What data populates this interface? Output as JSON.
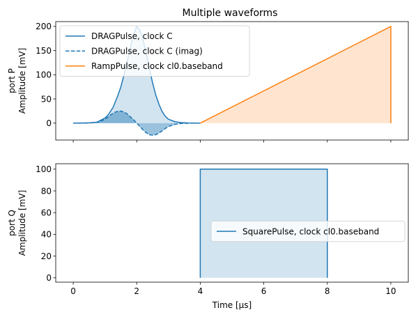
{
  "chart_data": {
    "title": "Multiple waveforms",
    "subplots": [
      {
        "type": "line",
        "ylabel_line1": "port P",
        "ylabel_line2": "Amplitude [mV]",
        "xlim": [
          -0.55,
          10.55
        ],
        "ylim": [
          -35,
          210
        ],
        "x_ticks": [
          0,
          2,
          4,
          6,
          8,
          10
        ],
        "y_ticks": [
          0,
          50,
          100,
          150,
          200
        ],
        "y_tick_labels": [
          "0",
          "50",
          "100",
          "150",
          "200"
        ],
        "show_x_tick_labels": false,
        "legend_position": "upper-left",
        "series": [
          {
            "name": "DRAGPulse, clock C",
            "color": "#1f77b4",
            "dash": "solid",
            "fill_opacity": 0.2,
            "points": [
              [
                0,
                0
              ],
              [
                0.25,
                0.1
              ],
              [
                0.5,
                0.5
              ],
              [
                0.75,
                2
              ],
              [
                1.0,
                10.5
              ],
              [
                1.1,
                17
              ],
              [
                1.25,
                32
              ],
              [
                1.4,
                56
              ],
              [
                1.5,
                75
              ],
              [
                1.6,
                100
              ],
              [
                1.7,
                128
              ],
              [
                1.8,
                157
              ],
              [
                1.9,
                183
              ],
              [
                2.0,
                200
              ],
              [
                2.1,
                192
              ],
              [
                2.2,
                172
              ],
              [
                2.3,
                145
              ],
              [
                2.4,
                113
              ],
              [
                2.5,
                83
              ],
              [
                2.6,
                58
              ],
              [
                2.7,
                39
              ],
              [
                2.8,
                24
              ],
              [
                2.9,
                14
              ],
              [
                3.0,
                8
              ],
              [
                3.2,
                3
              ],
              [
                3.4,
                1
              ],
              [
                3.6,
                0.3
              ],
              [
                4.0,
                0
              ]
            ]
          },
          {
            "name": "DRAGPulse, clock C (imag)",
            "color": "#1f77b4",
            "dash": "dashed",
            "fill_opacity": 0.45,
            "points": [
              [
                0,
                0
              ],
              [
                0.5,
                0.3
              ],
              [
                0.8,
                2
              ],
              [
                1.0,
                8
              ],
              [
                1.1,
                13
              ],
              [
                1.2,
                18
              ],
              [
                1.3,
                22
              ],
              [
                1.4,
                24.5
              ],
              [
                1.5,
                25
              ],
              [
                1.6,
                23
              ],
              [
                1.7,
                19
              ],
              [
                1.8,
                13
              ],
              [
                1.9,
                7
              ],
              [
                2.0,
                0
              ],
              [
                2.1,
                -7
              ],
              [
                2.2,
                -14
              ],
              [
                2.3,
                -20
              ],
              [
                2.4,
                -24
              ],
              [
                2.5,
                -25
              ],
              [
                2.6,
                -24
              ],
              [
                2.7,
                -20.5
              ],
              [
                2.8,
                -16
              ],
              [
                2.9,
                -11
              ],
              [
                3.0,
                -7
              ],
              [
                3.2,
                -2.5
              ],
              [
                3.4,
                -0.8
              ],
              [
                3.7,
                -0.1
              ],
              [
                4.0,
                0
              ]
            ]
          },
          {
            "name": "RampPulse, clock cl0.baseband",
            "color": "#ff7f0e",
            "dash": "solid",
            "fill_opacity": 0.2,
            "points": [
              [
                4,
                0
              ],
              [
                10,
                200
              ],
              [
                10,
                0
              ]
            ]
          }
        ]
      },
      {
        "type": "line",
        "xlabel": "Time [µs]",
        "ylabel_line1": "port Q",
        "ylabel_line2": "Amplitude [mV]",
        "xlim": [
          -0.55,
          10.55
        ],
        "ylim": [
          -4,
          105
        ],
        "x_ticks": [
          0,
          2,
          4,
          6,
          8,
          10
        ],
        "x_tick_labels": [
          "0",
          "2",
          "4",
          "6",
          "8",
          "10"
        ],
        "y_ticks": [
          0,
          20,
          40,
          60,
          80,
          100
        ],
        "y_tick_labels": [
          "0",
          "20",
          "40",
          "60",
          "80",
          "100"
        ],
        "show_x_tick_labels": true,
        "legend_position": "center-right",
        "series": [
          {
            "name": "SquarePulse, clock cl0.baseband",
            "color": "#1f77b4",
            "dash": "solid",
            "fill_opacity": 0.2,
            "points": [
              [
                4,
                0
              ],
              [
                4,
                100
              ],
              [
                8,
                100
              ],
              [
                8,
                0
              ]
            ]
          }
        ]
      }
    ]
  }
}
